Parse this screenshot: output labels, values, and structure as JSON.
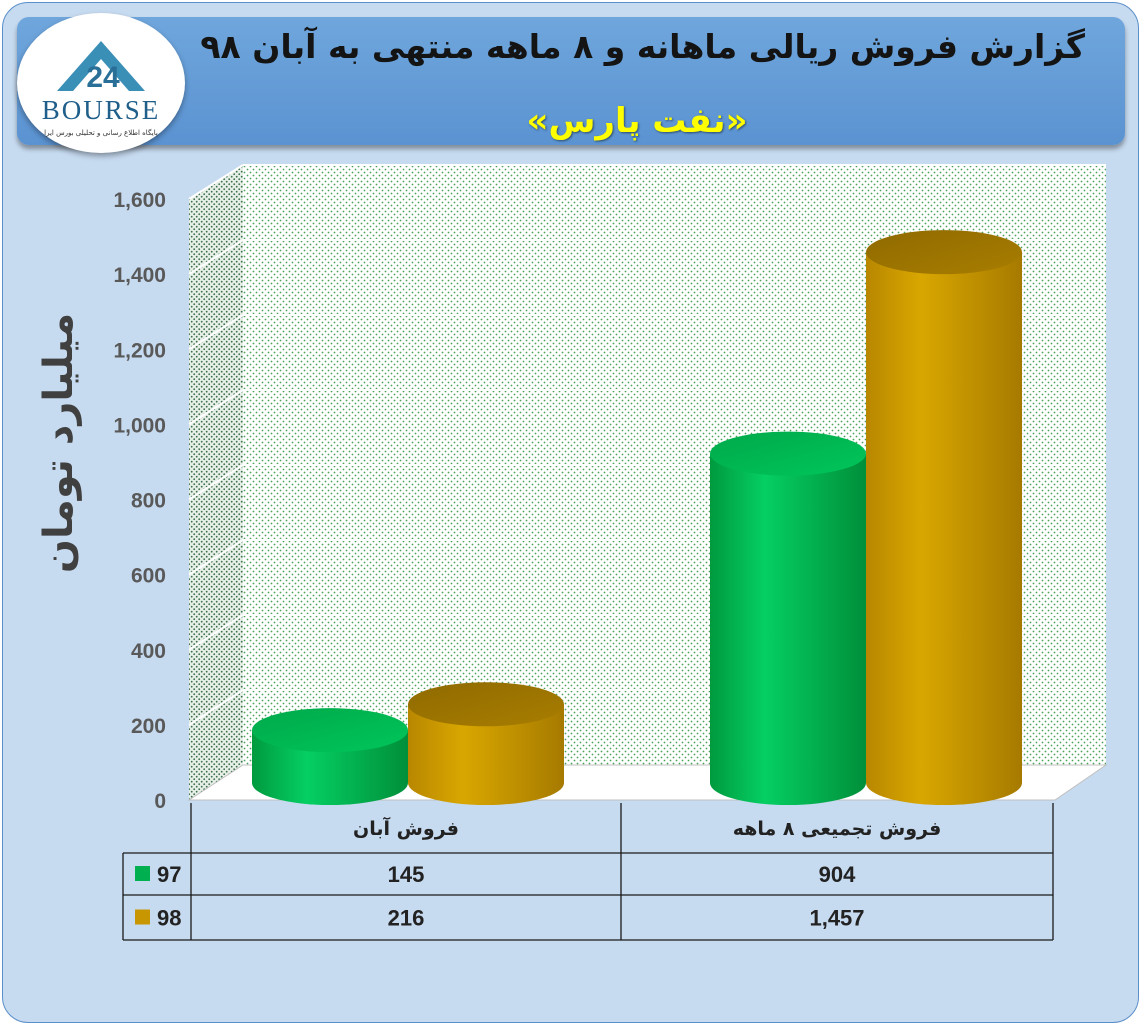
{
  "header": {
    "title": "گزارش فروش ریالی ماهانه و ۸ ماهه منتهی به آبان ۹۸",
    "subtitle": "«نفت پارس»"
  },
  "logo": {
    "text": "BOURSE",
    "tagline": "پایگاه اطلاع رسانی و تحلیلی بورس ایرا"
  },
  "colors": {
    "series_97": "#00b050",
    "series_98": "#c89600",
    "header_bg": "#5b9bd5",
    "subtitle": "#ffff00",
    "background": "#c6daf0"
  },
  "chart_data": {
    "type": "bar",
    "style": "3d-cylinder",
    "title": "گزارش فروش ریالی ماهانه و ۸ ماهه منتهی به آبان ۹۸",
    "subtitle": "«نفت پارس»",
    "ylabel": "میلیارد تومان",
    "xlabel": "",
    "ylim": [
      0,
      1600
    ],
    "yticks": [
      "0",
      "200",
      "400",
      "600",
      "800",
      "1,000",
      "1,200",
      "1,400",
      "1,600"
    ],
    "categories": [
      "فروش آبان",
      "فروش تجمیعی ۸ ماهه"
    ],
    "series": [
      {
        "name": "97",
        "values": [
          145,
          904
        ],
        "labels": [
          "145",
          "904"
        ],
        "color": "#00b050"
      },
      {
        "name": "98",
        "values": [
          216,
          1457
        ],
        "labels": [
          "216",
          "1,457"
        ],
        "color": "#c89600"
      }
    ],
    "grid": true,
    "legend": "data-table-left"
  }
}
